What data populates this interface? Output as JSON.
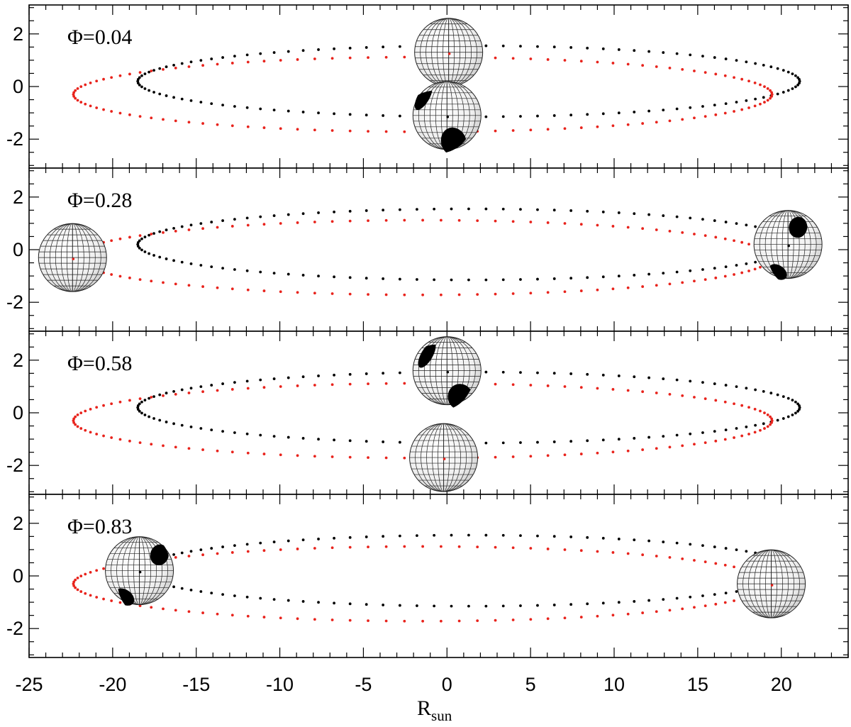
{
  "chart_data": {
    "type": "scatter",
    "title": "",
    "xlabel": "R",
    "xlabel_subscript": "sun",
    "ylabel": "",
    "xlim": [
      -25,
      24
    ],
    "ylim": [
      -3.1,
      3.1
    ],
    "x_ticks": [
      -25,
      -20,
      -15,
      -10,
      -5,
      0,
      5,
      10,
      15,
      20
    ],
    "x_tick_labels": [
      "-25",
      "-20",
      "-15",
      "-10",
      "-5",
      "0",
      "5",
      "10",
      "15",
      "20"
    ],
    "y_ticks": [
      -2,
      0,
      2
    ],
    "y_tick_labels": [
      "-2",
      "0",
      "2"
    ],
    "colors": {
      "orbit_primary": "#000000",
      "orbit_secondary": "#e8231c",
      "star_fill": "#efefef",
      "grid_line": "#222222"
    },
    "orbits": [
      {
        "name": "black orbit",
        "color": "#000000",
        "center_x": 1.3,
        "center_y": 0.2,
        "semi_major": 19.8,
        "semi_minor": 1.35
      },
      {
        "name": "red orbit",
        "color": "#e8231c",
        "center_x": -1.45,
        "center_y": -0.3,
        "semi_major": 20.9,
        "semi_minor": 1.42
      }
    ],
    "panels": [
      {
        "phase_label": "Φ=0.04",
        "stars": [
          {
            "name": "star-red",
            "x": 0.1,
            "y": 1.3,
            "radius": 1.35,
            "spots": []
          },
          {
            "name": "star-black",
            "x": 0.0,
            "y": -1.1,
            "radius": 1.35,
            "spots": [
              {
                "x": -1.4,
                "y": -0.4,
                "rx": 0.35,
                "ry": 0.55,
                "angle": 30
              },
              {
                "x": 0.4,
                "y": -2.1,
                "rx": 0.75,
                "ry": 0.55,
                "angle": -20
              }
            ]
          }
        ]
      },
      {
        "phase_label": "Φ=0.28",
        "stars": [
          {
            "name": "star-red",
            "x": -22.4,
            "y": -0.3,
            "radius": 1.35,
            "spots": []
          },
          {
            "name": "star-black",
            "x": 20.4,
            "y": 0.2,
            "radius": 1.35,
            "spots": [
              {
                "x": 21.0,
                "y": 0.85,
                "rx": 0.55,
                "ry": 0.4,
                "angle": 10
              },
              {
                "x": 19.8,
                "y": -0.85,
                "rx": 0.6,
                "ry": 0.25,
                "angle": 35
              }
            ]
          }
        ]
      },
      {
        "phase_label": "Φ=0.58",
        "stars": [
          {
            "name": "star-black",
            "x": 0.0,
            "y": 1.6,
            "radius": 1.35,
            "spots": [
              {
                "x": -1.2,
                "y": 2.2,
                "rx": 0.35,
                "ry": 0.55,
                "angle": 30
              },
              {
                "x": 0.8,
                "y": 0.6,
                "rx": 0.75,
                "ry": 0.5,
                "angle": -20
              }
            ]
          },
          {
            "name": "star-red",
            "x": -0.2,
            "y": -1.7,
            "radius": 1.35,
            "spots": []
          }
        ]
      },
      {
        "phase_label": "Φ=0.83",
        "stars": [
          {
            "name": "star-black",
            "x": -18.4,
            "y": 0.2,
            "radius": 1.35,
            "spots": [
              {
                "x": -17.2,
                "y": 0.8,
                "rx": 0.55,
                "ry": 0.4,
                "angle": 15
              },
              {
                "x": -19.3,
                "y": -0.8,
                "rx": 0.65,
                "ry": 0.28,
                "angle": 35
              }
            ]
          },
          {
            "name": "star-red",
            "x": 19.4,
            "y": -0.3,
            "radius": 1.35,
            "spots": []
          }
        ]
      }
    ]
  }
}
